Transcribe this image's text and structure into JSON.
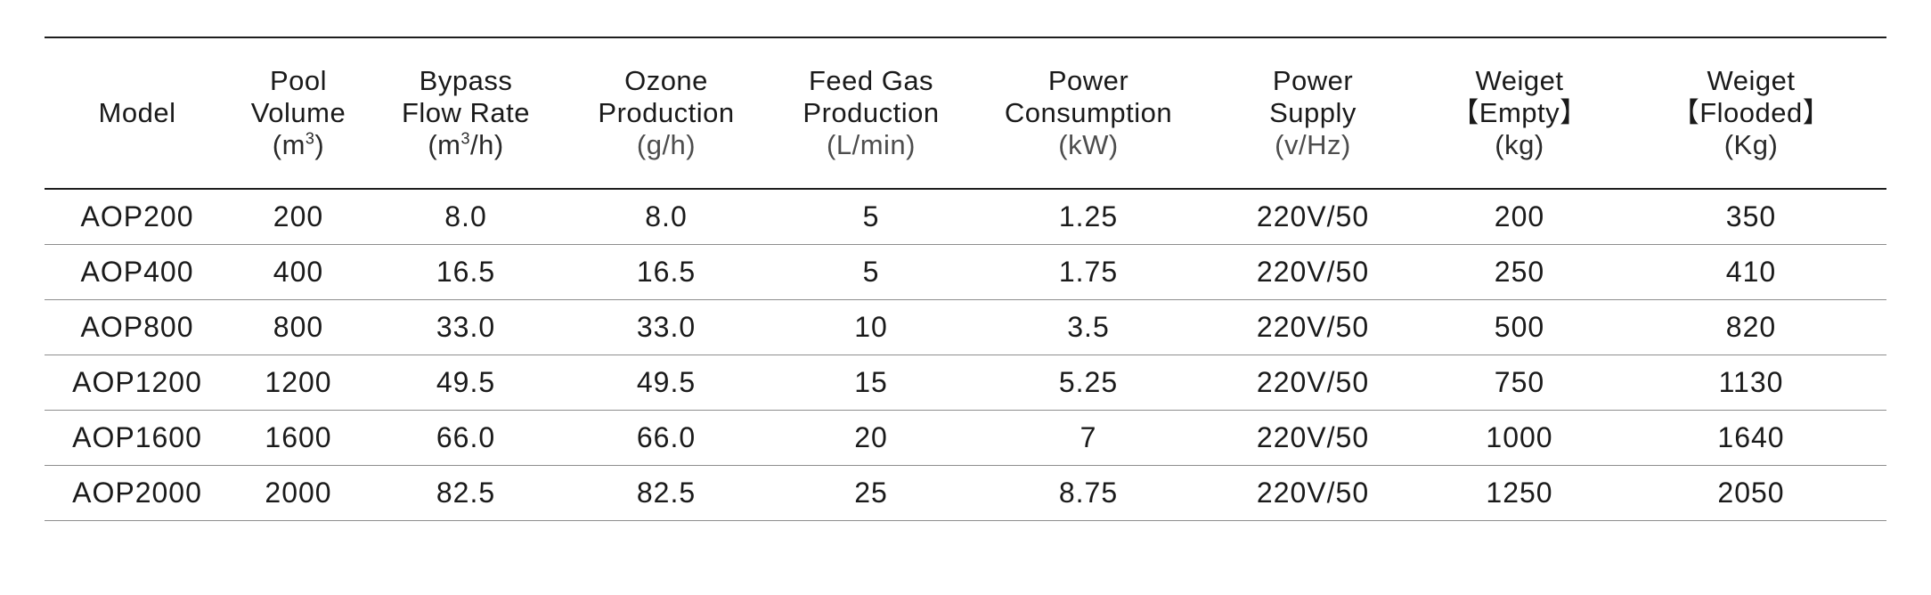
{
  "table": {
    "headers": [
      {
        "lines": [
          "Model"
        ],
        "unit": "",
        "unit_sup": "",
        "unit_tail": ""
      },
      {
        "lines": [
          "Pool",
          "Volume"
        ],
        "unit": "(m",
        "unit_sup": "3",
        "unit_tail": ")"
      },
      {
        "lines": [
          "Bypass",
          "Flow Rate"
        ],
        "unit": "(m",
        "unit_sup": "3",
        "unit_tail": "/h)"
      },
      {
        "lines": [
          "Ozone",
          "Production"
        ],
        "unit": "(g/h)",
        "unit_sup": "",
        "unit_tail": ""
      },
      {
        "lines": [
          "Feed Gas",
          "Production"
        ],
        "unit": "(L/min)",
        "unit_sup": "",
        "unit_tail": ""
      },
      {
        "lines": [
          "Power",
          "Consumption"
        ],
        "unit": "(kW)",
        "unit_sup": "",
        "unit_tail": ""
      },
      {
        "lines": [
          "Power",
          "Supply"
        ],
        "unit": "(v/Hz)",
        "unit_sup": "",
        "unit_tail": ""
      },
      {
        "lines": [
          "Weiget",
          "【Empty】"
        ],
        "unit": "(kg)",
        "unit_sup": "",
        "unit_tail": ""
      },
      {
        "lines": [
          "Weiget",
          "【Flooded】"
        ],
        "unit": "(Kg)",
        "unit_sup": "",
        "unit_tail": ""
      }
    ],
    "rows": [
      [
        "AOP200",
        "200",
        "8.0",
        "8.0",
        "5",
        "1.25",
        "220V/50",
        "200",
        "350"
      ],
      [
        "AOP400",
        "400",
        "16.5",
        "16.5",
        "5",
        "1.75",
        "220V/50",
        "250",
        "410"
      ],
      [
        "AOP800",
        "800",
        "33.0",
        "33.0",
        "10",
        "3.5",
        "220V/50",
        "500",
        "820"
      ],
      [
        "AOP1200",
        "1200",
        "49.5",
        "49.5",
        "15",
        "5.25",
        "220V/50",
        "750",
        "1130"
      ],
      [
        "AOP1600",
        "1600",
        "66.0",
        "66.0",
        "20",
        "7",
        "220V/50",
        "1000",
        "1640"
      ],
      [
        "AOP2000",
        "2000",
        "82.5",
        "82.5",
        "25",
        "8.75",
        "220V/50",
        "1250",
        "2050"
      ]
    ]
  }
}
